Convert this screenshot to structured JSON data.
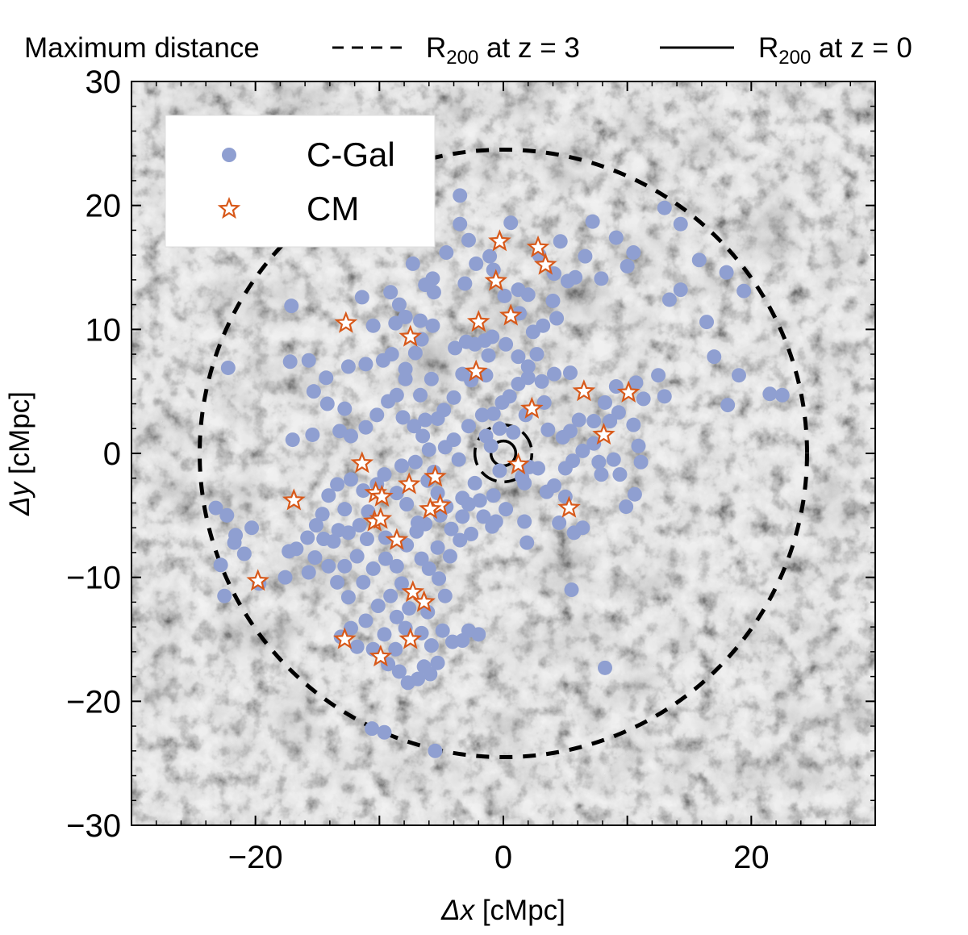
{
  "chart_data": {
    "type": "scatter",
    "xlabel_symbol": "Δx",
    "xlabel_unit": " [cMpc]",
    "ylabel_symbol": "Δy",
    "ylabel_unit": " [cMpc]",
    "xlim": [
      -30,
      30
    ],
    "ylim": [
      -30,
      30
    ],
    "xticks": [
      -20,
      0,
      20
    ],
    "yticks": [
      -30,
      -20,
      -10,
      0,
      10,
      20,
      30
    ],
    "tick_labels_x": [
      "−20",
      "0",
      "20"
    ],
    "tick_labels_y": [
      "−30",
      "−20",
      "−10",
      "0",
      "10",
      "20",
      "30"
    ],
    "background": "dark-matter density projection (grayscale cosmic web)",
    "top_legend": {
      "title": "Maximum distance",
      "dashed_label": "R",
      "dashed_sub": "200",
      "dashed_tail": " at z = 3",
      "solid_label": "R",
      "solid_sub": "200",
      "solid_tail": " at z = 0"
    },
    "circles": [
      {
        "name": "maximum-distance",
        "r": 24.5,
        "style": "dashed-thick"
      },
      {
        "name": "r200-z3",
        "r": 2.3,
        "style": "dashed"
      },
      {
        "name": "r200-z0",
        "r": 1.0,
        "style": "solid"
      }
    ],
    "series": [
      {
        "name": "C-Gal",
        "marker": "circle",
        "color": "#8f9fd1",
        "points": [
          [
            -3.5,
            20.8
          ],
          [
            -3.5,
            18.5
          ],
          [
            -2.8,
            17.2
          ],
          [
            0.6,
            18.6
          ],
          [
            -4.6,
            16.2
          ],
          [
            -7.3,
            15.3
          ],
          [
            -1.1,
            15.9
          ],
          [
            -2.2,
            15.3
          ],
          [
            -0.8,
            14.8
          ],
          [
            -5.7,
            14.1
          ],
          [
            -3.1,
            13.7
          ],
          [
            -6.3,
            13.6
          ],
          [
            -5.6,
            13.0
          ],
          [
            -9.1,
            13.0
          ],
          [
            -8.4,
            12.0
          ],
          [
            -7.9,
            11.0
          ],
          [
            -8.7,
            10.5
          ],
          [
            -6.7,
            10.7
          ],
          [
            -5.7,
            10.3
          ],
          [
            -10.5,
            10.3
          ],
          [
            -6.6,
            9.2
          ],
          [
            -7.1,
            8.1
          ],
          [
            -3.9,
            8.5
          ],
          [
            -3.0,
            9.0
          ],
          [
            -2.3,
            8.8
          ],
          [
            -1.5,
            9.1
          ],
          [
            -0.9,
            9.4
          ],
          [
            0.1,
            12.7
          ],
          [
            1.2,
            13.2
          ],
          [
            2.0,
            12.8
          ],
          [
            1.3,
            11.3
          ],
          [
            2.4,
            9.8
          ],
          [
            0.2,
            8.8
          ],
          [
            1.2,
            7.8
          ],
          [
            2.7,
            8.0
          ],
          [
            3.2,
            10.3
          ],
          [
            4.3,
            10.9
          ],
          [
            4.0,
            12.3
          ],
          [
            5.2,
            13.9
          ],
          [
            5.8,
            14.2
          ],
          [
            4.6,
            17.1
          ],
          [
            2.9,
            16.0
          ],
          [
            4.1,
            14.5
          ],
          [
            6.6,
            15.9
          ],
          [
            7.2,
            18.7
          ],
          [
            9.1,
            17.4
          ],
          [
            7.9,
            14.1
          ],
          [
            10.0,
            15.1
          ],
          [
            10.5,
            16.2
          ],
          [
            13.0,
            19.8
          ],
          [
            14.3,
            18.5
          ],
          [
            15.8,
            15.6
          ],
          [
            19.4,
            13.1
          ],
          [
            18.0,
            14.6
          ],
          [
            14.3,
            13.2
          ],
          [
            13.4,
            12.4
          ],
          [
            16.4,
            10.6
          ],
          [
            17.0,
            7.8
          ],
          [
            19.0,
            6.3
          ],
          [
            21.5,
            4.8
          ],
          [
            22.5,
            4.7
          ],
          [
            18.1,
            3.9
          ],
          [
            13.0,
            4.6
          ],
          [
            11.3,
            4.4
          ],
          [
            12.5,
            6.3
          ],
          [
            10.7,
            5.7
          ],
          [
            9.1,
            5.4
          ],
          [
            8.2,
            4.1
          ],
          [
            9.3,
            3.3
          ],
          [
            10.5,
            2.3
          ],
          [
            8.6,
            2.6
          ],
          [
            7.3,
            2.6
          ],
          [
            6.1,
            2.7
          ],
          [
            5.4,
            1.8
          ],
          [
            4.8,
            1.3
          ],
          [
            3.6,
            1.9
          ],
          [
            7.3,
            0.8
          ],
          [
            6.4,
            0.2
          ],
          [
            5.6,
            -0.6
          ],
          [
            5.0,
            -1.2
          ],
          [
            7.7,
            -0.7
          ],
          [
            7.9,
            -1.7
          ],
          [
            9.4,
            -1.7
          ],
          [
            10.9,
            0.6
          ],
          [
            11.1,
            -0.7
          ],
          [
            8.9,
            -0.5
          ],
          [
            10.6,
            -3.3
          ],
          [
            9.9,
            -4.3
          ],
          [
            6.4,
            -6.0
          ],
          [
            5.7,
            -6.4
          ],
          [
            5.0,
            -3.5
          ],
          [
            4.1,
            -2.6
          ],
          [
            2.8,
            -1.2
          ],
          [
            2.1,
            -1.1
          ],
          [
            1.7,
            -2.4
          ],
          [
            3.5,
            -3.1
          ],
          [
            1.7,
            -5.5
          ],
          [
            0.2,
            -4.5
          ],
          [
            -0.6,
            -5.5
          ],
          [
            -1.9,
            -3.8
          ],
          [
            -2.8,
            -4.1
          ],
          [
            -3.3,
            -3.6
          ],
          [
            -2.3,
            -2.4
          ],
          [
            -3.6,
            -0.5
          ],
          [
            -4.7,
            0.5
          ],
          [
            -6.0,
            0.3
          ],
          [
            -7.1,
            -0.7
          ],
          [
            -6.5,
            1.4
          ],
          [
            -4.0,
            1.1
          ],
          [
            -2.8,
            2.2
          ],
          [
            -1.7,
            3.1
          ],
          [
            -0.8,
            3.2
          ],
          [
            -0.1,
            4.1
          ],
          [
            0.5,
            4.6
          ],
          [
            1.2,
            5.6
          ],
          [
            2.0,
            6.1
          ],
          [
            3.1,
            5.8
          ],
          [
            4.1,
            6.4
          ],
          [
            5.4,
            6.5
          ],
          [
            -4.0,
            4.5
          ],
          [
            -4.8,
            3.5
          ],
          [
            -5.3,
            2.8
          ],
          [
            -2.6,
            5.9
          ],
          [
            -1.4,
            6.3
          ],
          [
            -1.2,
            7.9
          ],
          [
            1.8,
            3.1
          ],
          [
            0.8,
            1.7
          ],
          [
            -0.3,
            2.0
          ],
          [
            -1.4,
            1.4
          ],
          [
            -7.9,
            6.0
          ],
          [
            -8.6,
            4.7
          ],
          [
            -9.3,
            4.2
          ],
          [
            -10.2,
            3.1
          ],
          [
            -11.1,
            2.1
          ],
          [
            -12.3,
            1.4
          ],
          [
            -13.2,
            1.8
          ],
          [
            -12.8,
            3.6
          ],
          [
            -14.2,
            4.0
          ],
          [
            -15.3,
            5.0
          ],
          [
            -14.3,
            6.1
          ],
          [
            -15.7,
            7.5
          ],
          [
            -17.2,
            7.4
          ],
          [
            -17.0,
            1.1
          ],
          [
            -15.4,
            1.5
          ],
          [
            -12.5,
            7.0
          ],
          [
            -11.1,
            7.2
          ],
          [
            -9.7,
            7.5
          ],
          [
            -9.0,
            8.0
          ],
          [
            -7.9,
            6.8
          ],
          [
            -6.7,
            4.7
          ],
          [
            -5.8,
            6.0
          ],
          [
            -3.3,
            6.4
          ],
          [
            -8.1,
            2.9
          ],
          [
            -7.2,
            2.2
          ],
          [
            -6.3,
            2.7
          ],
          [
            -6.1,
            -2.2
          ],
          [
            -5.3,
            -3.2
          ],
          [
            -4.6,
            -4.3
          ],
          [
            -5.1,
            -5.0
          ],
          [
            -6.3,
            -5.7
          ],
          [
            -7.0,
            -6.3
          ],
          [
            -7.8,
            -4.1
          ],
          [
            -8.6,
            -3.2
          ],
          [
            -9.6,
            -1.7
          ],
          [
            -10.2,
            -2.5
          ],
          [
            -11.3,
            -3.0
          ],
          [
            -12.3,
            -2.1
          ],
          [
            -13.4,
            -2.5
          ],
          [
            -14.1,
            -3.4
          ],
          [
            -14.6,
            -4.9
          ],
          [
            -15.1,
            -5.8
          ],
          [
            -15.8,
            -6.8
          ],
          [
            -16.7,
            -7.7
          ],
          [
            -15.2,
            -8.4
          ],
          [
            -14.1,
            -9.1
          ],
          [
            -13.7,
            -7.1
          ],
          [
            -12.5,
            -6.4
          ],
          [
            -11.6,
            -5.8
          ],
          [
            -11.0,
            -6.9
          ],
          [
            -11.8,
            -8.3
          ],
          [
            -12.8,
            -9.1
          ],
          [
            -13.4,
            -10.4
          ],
          [
            -12.5,
            -11.6
          ],
          [
            -11.3,
            -10.4
          ],
          [
            -10.5,
            -9.3
          ],
          [
            -9.5,
            -8.5
          ],
          [
            -8.6,
            -9.1
          ],
          [
            -7.8,
            -7.4
          ],
          [
            -8.2,
            -10.5
          ],
          [
            -9.1,
            -11.5
          ],
          [
            -10.1,
            -12.3
          ],
          [
            -11.1,
            -13.5
          ],
          [
            -12.3,
            -14.1
          ],
          [
            -13.1,
            -14.8
          ],
          [
            -11.8,
            -15.6
          ],
          [
            -10.5,
            -15.8
          ],
          [
            -9.6,
            -14.6
          ],
          [
            -8.6,
            -13.2
          ],
          [
            -7.6,
            -12.5
          ],
          [
            -7.9,
            -14.1
          ],
          [
            -8.7,
            -15.8
          ],
          [
            -9.3,
            -17.0
          ],
          [
            -8.4,
            -17.6
          ],
          [
            -7.7,
            -18.5
          ],
          [
            -6.9,
            -18.2
          ],
          [
            -6.4,
            -17.2
          ],
          [
            -5.9,
            -17.8
          ],
          [
            -5.3,
            -16.9
          ],
          [
            -5.8,
            -15.5
          ],
          [
            -6.6,
            -14.5
          ],
          [
            -6.1,
            -12.8
          ],
          [
            -4.9,
            -14.3
          ],
          [
            -4.1,
            -15.2
          ],
          [
            -3.3,
            -15.1
          ],
          [
            -2.8,
            -14.3
          ],
          [
            -2.0,
            -14.6
          ],
          [
            -4.7,
            -11.5
          ],
          [
            -5.2,
            -10.1
          ],
          [
            -6.0,
            -9.3
          ],
          [
            -6.6,
            -8.5
          ],
          [
            -5.3,
            -7.6
          ],
          [
            -4.3,
            -8.3
          ],
          [
            -3.5,
            -7.0
          ],
          [
            -2.6,
            -6.5
          ],
          [
            -3.3,
            -5.1
          ],
          [
            -4.2,
            -6.1
          ],
          [
            -6.9,
            -5.6
          ],
          [
            -17.3,
            -7.9
          ],
          [
            -17.6,
            -10.0
          ],
          [
            -19.7,
            -10.5
          ],
          [
            -20.9,
            -8.1
          ],
          [
            -21.7,
            -7.2
          ],
          [
            -21.6,
            -6.6
          ],
          [
            -20.3,
            -6.0
          ],
          [
            -22.3,
            -5.0
          ],
          [
            -23.2,
            -4.4
          ],
          [
            -22.8,
            -9.0
          ],
          [
            -22.5,
            -11.5
          ],
          [
            -22.2,
            6.9
          ],
          [
            -17.1,
            11.9
          ],
          [
            -11.4,
            12.6
          ],
          [
            -10.6,
            -22.2
          ],
          [
            -9.6,
            -22.5
          ],
          [
            -5.5,
            -24.0
          ],
          [
            8.2,
            -17.3
          ],
          [
            5.5,
            -11.0
          ],
          [
            1.9,
            -7.2
          ],
          [
            4.5,
            -5.6
          ],
          [
            2.0,
            7.0
          ],
          [
            3.3,
            4.1
          ],
          [
            -1.0,
            0.6
          ],
          [
            -0.3,
            -1.4
          ],
          [
            1.5,
            -1.9
          ],
          [
            -0.8,
            -3.4
          ],
          [
            -1.6,
            -5.1
          ],
          [
            -0.9,
            -5.9
          ],
          [
            -5.6,
            -1.5
          ],
          [
            -8.2,
            -1.0
          ],
          [
            -9.5,
            -6.8
          ],
          [
            -10.9,
            -4.7
          ],
          [
            -12.8,
            -4.5
          ],
          [
            -13.3,
            -6.2
          ],
          [
            -14.5,
            -6.9
          ],
          [
            -15.7,
            -9.6
          ]
        ]
      },
      {
        "name": "CM",
        "marker": "star",
        "color": "#d8591a",
        "points": [
          [
            -0.3,
            17.1
          ],
          [
            2.8,
            16.6
          ],
          [
            3.4,
            15.2
          ],
          [
            -0.6,
            13.9
          ],
          [
            0.6,
            11.1
          ],
          [
            -2.0,
            10.6
          ],
          [
            -12.7,
            10.5
          ],
          [
            -7.5,
            9.4
          ],
          [
            -2.2,
            6.6
          ],
          [
            6.5,
            5.0
          ],
          [
            10.1,
            4.9
          ],
          [
            2.3,
            3.6
          ],
          [
            8.1,
            1.5
          ],
          [
            1.2,
            -0.9
          ],
          [
            -11.4,
            -0.8
          ],
          [
            -5.5,
            -1.9
          ],
          [
            -7.6,
            -2.5
          ],
          [
            -10.3,
            -3.2
          ],
          [
            -9.8,
            -3.5
          ],
          [
            -16.9,
            -3.8
          ],
          [
            -5.1,
            -4.2
          ],
          [
            -5.9,
            -4.5
          ],
          [
            5.3,
            -4.4
          ],
          [
            -10.4,
            -5.5
          ],
          [
            -9.9,
            -5.3
          ],
          [
            -8.6,
            -7.0
          ],
          [
            -7.3,
            -11.2
          ],
          [
            -6.4,
            -12.0
          ],
          [
            -19.8,
            -10.3
          ],
          [
            -12.8,
            -15.0
          ],
          [
            -7.5,
            -15.0
          ],
          [
            -9.9,
            -16.4
          ]
        ]
      }
    ]
  },
  "legend": {
    "items": [
      {
        "label": "C-Gal",
        "marker": "circle"
      },
      {
        "label": "CM",
        "marker": "star"
      }
    ]
  },
  "colors": {
    "cgal": "#8f9fd1",
    "cm_edge": "#d8591a",
    "cm_fill": "#ffffff",
    "background": "#f2f2f2",
    "ink": "#000000"
  }
}
